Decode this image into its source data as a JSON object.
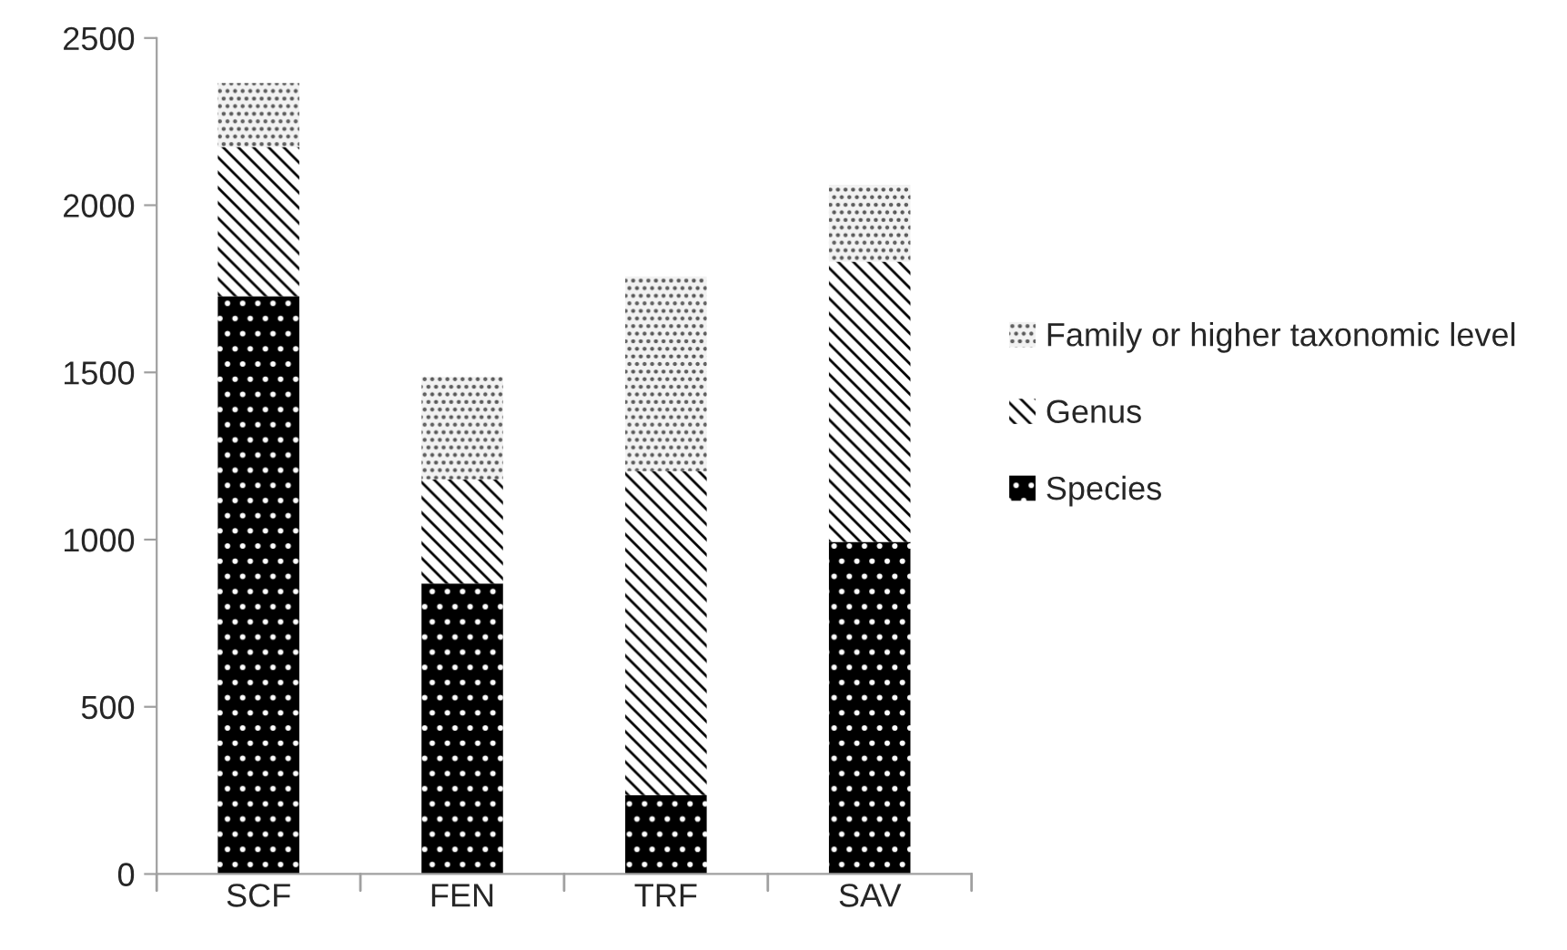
{
  "chart_data": {
    "type": "bar",
    "stacked": true,
    "categories": [
      "SCF",
      "FEN",
      "TRF",
      "SAV"
    ],
    "series": [
      {
        "name": "Species",
        "color": "#000000",
        "values": [
          1728,
          869,
          236,
          993
        ]
      },
      {
        "name": "Genus",
        "color": "#ffffff",
        "values": [
          446,
          311,
          969,
          838
        ]
      },
      {
        "name": "Family or higher taxonomic level",
        "color": "#f2f2f2",
        "values": [
          191,
          307,
          582,
          230
        ]
      }
    ],
    "ylim": [
      0,
      2500
    ],
    "yticks": [
      0,
      500,
      1000,
      1500,
      2000,
      2500
    ],
    "grid": false,
    "legend": "right"
  }
}
